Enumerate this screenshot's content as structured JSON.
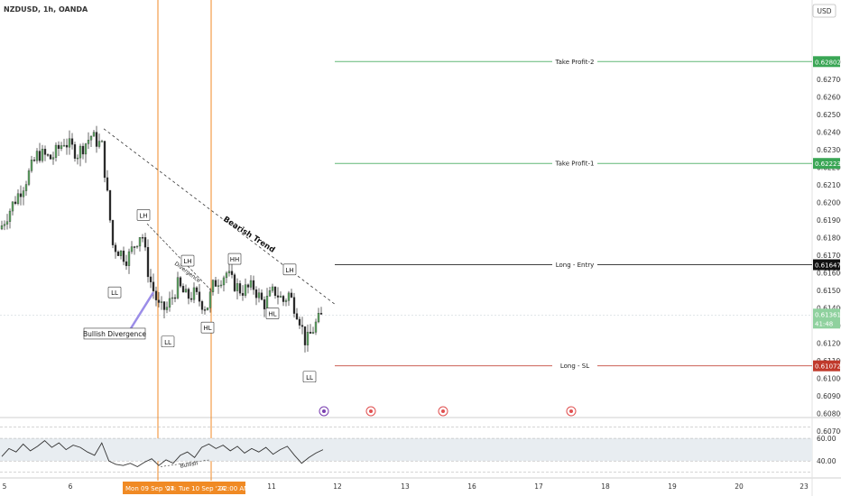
{
  "header": {
    "symbol": "NZDUSD, 1h, OANDA",
    "currency": "USD"
  },
  "colors": {
    "up": "#2a2a2a",
    "down": "#2a2a2a",
    "tp": "#3aa655",
    "entry": "#111111",
    "sl": "#c0392b",
    "vline": "#f08a24",
    "rsi": "#333333"
  },
  "chart_data": [
    {
      "type": "candlestick",
      "title": "NZDUSD, 1h, OANDA",
      "y_axis": {
        "unit": "USD",
        "ticks": [
          0.607,
          0.608,
          0.609,
          0.61,
          0.611,
          0.612,
          0.613,
          0.614,
          0.615,
          0.616,
          0.617,
          0.618,
          0.619,
          0.62,
          0.621,
          0.622,
          0.623,
          0.624,
          0.625,
          0.626,
          0.627,
          0.628
        ],
        "ylim": [
          0.6068,
          0.6292
        ]
      },
      "x_axis": {
        "ticks": [
          "5",
          "6",
          "9",
          "10",
          "11",
          "12",
          "13",
          "16",
          "17",
          "18",
          "19",
          "20",
          "23"
        ],
        "crosshair_labels": [
          "Mon 09 Sep '24",
          "07:",
          "Tue 10 Sep '24",
          "02:00 AM"
        ]
      },
      "price_path": {
        "x": [
          0,
          14,
          28,
          42,
          57,
          71,
          86,
          101,
          113,
          125,
          141,
          157,
          165,
          177,
          185,
          197,
          207,
          215,
          229,
          237,
          251,
          257,
          267,
          281,
          292,
          304,
          314,
          320,
          331,
          339,
          347,
          351,
          358
        ],
        "close": [
          0.6185,
          0.6199,
          0.6212,
          0.6228,
          0.6225,
          0.6235,
          0.6228,
          0.6238,
          0.6232,
          0.6176,
          0.6168,
          0.6184,
          0.6158,
          0.6139,
          0.614,
          0.6153,
          0.6146,
          0.6148,
          0.614,
          0.6154,
          0.616,
          0.6155,
          0.615,
          0.6152,
          0.6142,
          0.615,
          0.6144,
          0.6148,
          0.6136,
          0.612,
          0.6128,
          0.6132,
          0.6136
        ]
      },
      "levels": [
        {
          "name": "Take Profit-2",
          "value": 0.62802
        },
        {
          "name": "Take Profit-1",
          "value": 0.62223
        },
        {
          "name": "Long - Entry",
          "value": 0.61647
        },
        {
          "name": "Long - SL",
          "value": 0.61072
        }
      ],
      "current_price": {
        "value": 0.61361,
        "countdown": "41:48"
      },
      "annotations": [
        {
          "text": "Bearish Trend",
          "x": 247,
          "y": 0.619
        },
        {
          "text": "Bullish Divergence",
          "x": 127,
          "y": 0.6125
        },
        {
          "text": "Divergence",
          "x": 193,
          "y": 0.6165
        },
        {
          "text": "LH",
          "x": 159,
          "y": 0.6193
        },
        {
          "text": "LL",
          "x": 127,
          "y": 0.6149
        },
        {
          "text": "LH",
          "x": 208,
          "y": 0.6167
        },
        {
          "text": "HH",
          "x": 260,
          "y": 0.6168
        },
        {
          "text": "LH",
          "x": 321,
          "y": 0.6162
        },
        {
          "text": "HL",
          "x": 302,
          "y": 0.6137
        },
        {
          "text": "LL",
          "x": 186,
          "y": 0.6121
        },
        {
          "text": "HL",
          "x": 230,
          "y": 0.6129
        },
        {
          "text": "LL",
          "x": 343,
          "y": 0.6101
        }
      ]
    },
    {
      "type": "line",
      "title": "RSI",
      "y_axis": {
        "ticks": [
          40.0,
          60.0
        ],
        "ylim": [
          33,
          72
        ]
      },
      "series": [
        {
          "values": [
            44,
            51,
            48,
            55,
            49,
            53,
            58,
            52,
            56,
            50,
            54,
            52,
            48,
            45,
            56,
            40,
            37,
            36,
            38,
            35,
            39,
            42,
            36,
            41,
            38,
            45,
            48,
            43,
            52,
            55,
            51,
            54,
            49,
            53,
            47,
            51,
            48,
            52,
            46,
            50,
            53,
            45,
            38,
            43,
            47,
            50
          ]
        }
      ],
      "annotations": [
        {
          "text": "Bullish"
        }
      ]
    }
  ]
}
